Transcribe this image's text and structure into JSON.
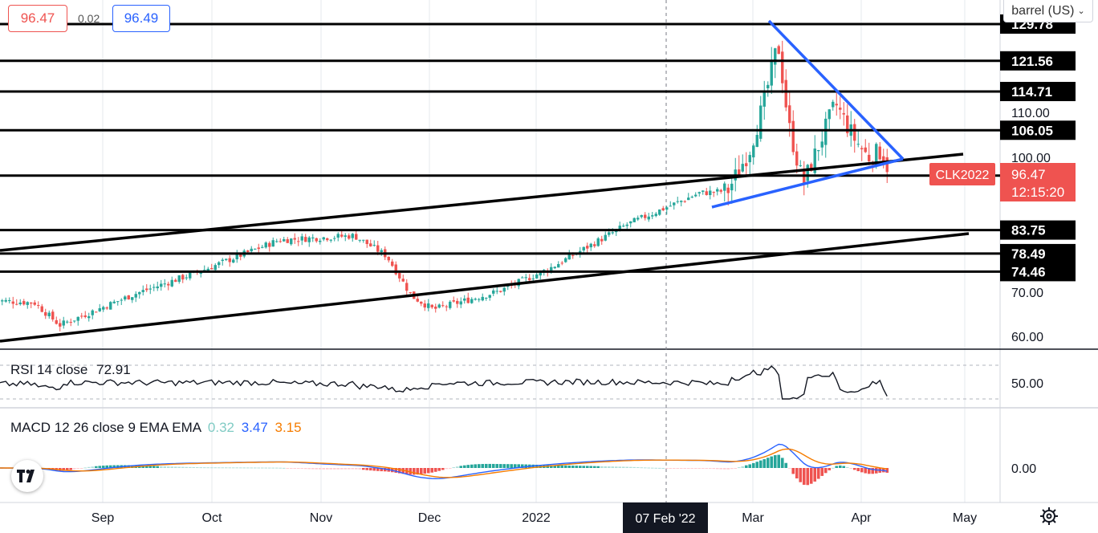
{
  "quote": {
    "bid": "96.47",
    "spread": "0.02",
    "ask": "96.49"
  },
  "unit_menu": {
    "label": "barrel (US)"
  },
  "symbol_tag": {
    "symbol": "CLK2022",
    "price": "96.47",
    "countdown": "12:15:20"
  },
  "level_labels": [
    "129.78",
    "121.56",
    "114.71",
    "106.05",
    "95.93",
    "83.75",
    "78.49",
    "74.46"
  ],
  "price_axis_ticks": [
    "110.00",
    "100.00",
    "70.00",
    "60.00"
  ],
  "rsi": {
    "label": "RSI 14 close",
    "value": "72.91",
    "tick": "50.00"
  },
  "macd": {
    "label": "MACD 12 26 close 9 EMA EMA",
    "hist": "0.32",
    "macd": "3.47",
    "signal": "3.15",
    "tick": "0.00"
  },
  "time_axis": {
    "labels": [
      "Sep",
      "Oct",
      "Nov",
      "Dec",
      "2022",
      "Mar",
      "Apr",
      "May"
    ],
    "crosshair_label": "07 Feb '22"
  },
  "colors": {
    "up": "#26a69a",
    "down": "#ef5350",
    "blue": "#2962ff",
    "orange": "#f57c00",
    "hist_light_up": "#b2dfdb",
    "hist_light_down": "#ffcdd2"
  },
  "icons": {
    "logo": "tradingview-logo-icon",
    "settings": "gear-icon",
    "menu": "chevron-down-icon"
  },
  "chart_data": {
    "type": "candlestick",
    "symbol": "CLK2022",
    "horizontal_levels": [
      129.78,
      121.56,
      114.71,
      106.05,
      95.93,
      83.75,
      78.49,
      74.46
    ],
    "last_price": 96.47,
    "rsi_last": 72.91,
    "macd_last": {
      "histogram": 0.32,
      "macd": 3.47,
      "signal": 3.15
    },
    "x_labels": [
      "Sep",
      "Oct",
      "Nov",
      "Dec",
      "2022",
      "Mar",
      "Apr",
      "May"
    ],
    "y_ticks": [
      110,
      100,
      70,
      60
    ],
    "anchors": [
      {
        "x": "Aug 02",
        "close": 68.0
      },
      {
        "x": "Aug 13",
        "close": 67.5
      },
      {
        "x": "Aug 20",
        "close": 62.5
      },
      {
        "x": "Sep 10",
        "close": 69.5
      },
      {
        "x": "Sep 28",
        "close": 74.5
      },
      {
        "x": "Oct 20",
        "close": 81.5
      },
      {
        "x": "Nov 10",
        "close": 82.5
      },
      {
        "x": "Nov 19",
        "close": 78.0
      },
      {
        "x": "Nov 26",
        "close": 69.0
      },
      {
        "x": "Dec 02",
        "close": 66.0
      },
      {
        "x": "Dec 20",
        "close": 70.0
      },
      {
        "x": "Jan 03",
        "close": 75.0
      },
      {
        "x": "Jan 25",
        "close": 85.0
      },
      {
        "x": "Feb 14",
        "close": 92.0
      },
      {
        "x": "Feb 22",
        "close": 92.5
      },
      {
        "x": "Feb 28",
        "close": 101.5
      },
      {
        "x": "Mar 04",
        "close": 112.0
      },
      {
        "x": "Mar 08",
        "close": 125.5
      },
      {
        "x": "Mar 11",
        "close": 107.0
      },
      {
        "x": "Mar 15",
        "close": 94.0
      },
      {
        "x": "Mar 24",
        "close": 112.0
      },
      {
        "x": "Mar 29",
        "close": 104.5
      },
      {
        "x": "Apr 02",
        "close": 100.0
      },
      {
        "x": "Apr 06",
        "close": 101.5
      },
      {
        "x": "Apr 08",
        "close": 96.47
      }
    ]
  }
}
